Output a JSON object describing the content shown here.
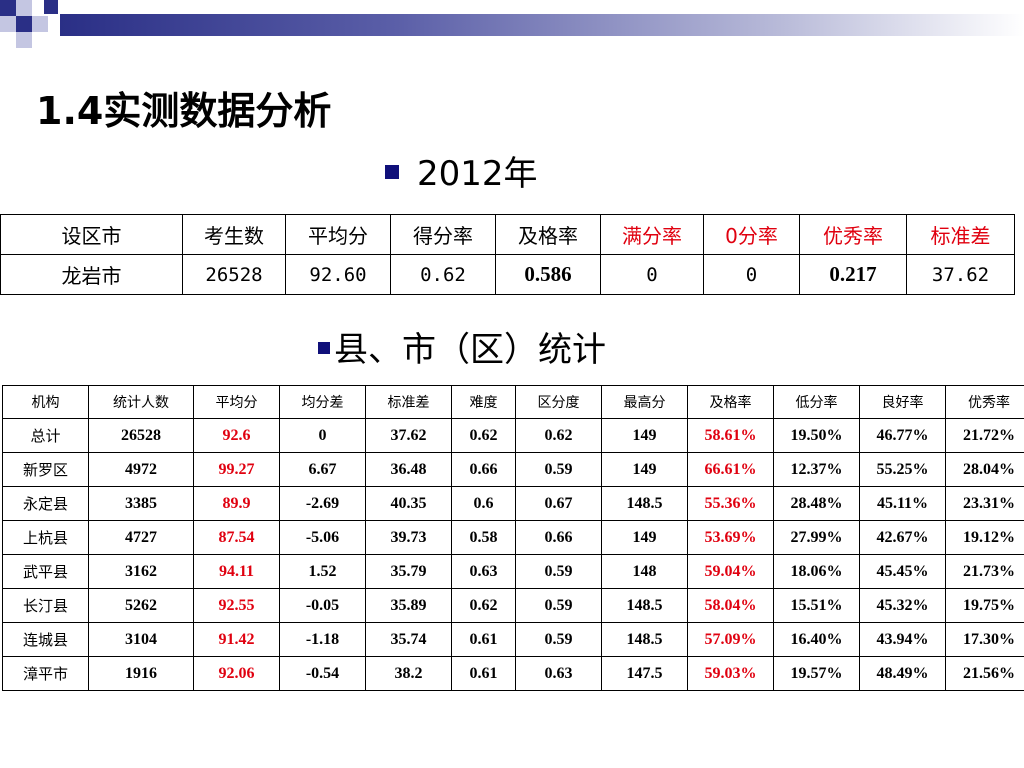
{
  "slide": {
    "title": "1.4实测数据分析",
    "section_year": "2012年",
    "section_county": "县、市（区）统计"
  },
  "colors": {
    "accent": "#10107a",
    "highlight": "#e0000f",
    "bar": "#2a2f86"
  },
  "table1": {
    "headers": [
      "设区市",
      "考生数",
      "平均分",
      "得分率",
      "及格率",
      "满分率",
      "0分率",
      "优秀率",
      "标准差"
    ],
    "row": [
      "龙岩市",
      "26528",
      "92.60",
      "0.62",
      "0.586",
      "0",
      "0",
      "0.217",
      "37.62"
    ]
  },
  "table2": {
    "headers": [
      "机构",
      "统计人数",
      "平均分",
      "均分差",
      "标准差",
      "难度",
      "区分度",
      "最高分",
      "及格率",
      "低分率",
      "良好率",
      "优秀率"
    ],
    "rows": [
      [
        "总计",
        "26528",
        "92.6",
        "0",
        "37.62",
        "0.62",
        "0.62",
        "149",
        "58.61%",
        "19.50%",
        "46.77%",
        "21.72%"
      ],
      [
        "新罗区",
        "4972",
        "99.27",
        "6.67",
        "36.48",
        "0.66",
        "0.59",
        "149",
        "66.61%",
        "12.37%",
        "55.25%",
        "28.04%"
      ],
      [
        "永定县",
        "3385",
        "89.9",
        "-2.69",
        "40.35",
        "0.6",
        "0.67",
        "148.5",
        "55.36%",
        "28.48%",
        "45.11%",
        "23.31%"
      ],
      [
        "上杭县",
        "4727",
        "87.54",
        "-5.06",
        "39.73",
        "0.58",
        "0.66",
        "149",
        "53.69%",
        "27.99%",
        "42.67%",
        "19.12%"
      ],
      [
        "武平县",
        "3162",
        "94.11",
        "1.52",
        "35.79",
        "0.63",
        "0.59",
        "148",
        "59.04%",
        "18.06%",
        "45.45%",
        "21.73%"
      ],
      [
        "长汀县",
        "5262",
        "92.55",
        "-0.05",
        "35.89",
        "0.62",
        "0.59",
        "148.5",
        "58.04%",
        "15.51%",
        "45.32%",
        "19.75%"
      ],
      [
        "连城县",
        "3104",
        "91.42",
        "-1.18",
        "35.74",
        "0.61",
        "0.59",
        "148.5",
        "57.09%",
        "16.40%",
        "43.94%",
        "17.30%"
      ],
      [
        "漳平市",
        "1916",
        "92.06",
        "-0.54",
        "38.2",
        "0.61",
        "0.63",
        "147.5",
        "59.03%",
        "19.57%",
        "48.49%",
        "21.56%"
      ]
    ]
  }
}
